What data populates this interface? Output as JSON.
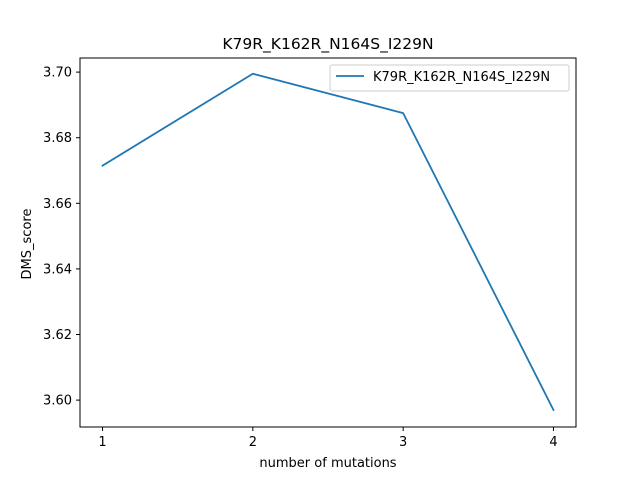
{
  "chart_data": {
    "type": "line",
    "title": "K79R_K162R_N164S_I229N",
    "xlabel": "number of mutations",
    "ylabel": "DMS_score",
    "x": [
      1,
      2,
      3,
      4
    ],
    "x_ticks": [
      "1",
      "2",
      "3",
      "4"
    ],
    "y_ticks": [
      "3.60",
      "3.62",
      "3.64",
      "3.66",
      "3.68",
      "3.70"
    ],
    "ylim": [
      3.5918,
      3.7043
    ],
    "xlim": [
      0.85,
      4.15
    ],
    "grid": false,
    "legend_placement": "top-right",
    "series": [
      {
        "name": "K79R_K162R_N164S_I229N",
        "color": "#1f77b4",
        "values": [
          3.6715,
          3.6995,
          3.6875,
          3.597
        ]
      }
    ]
  }
}
